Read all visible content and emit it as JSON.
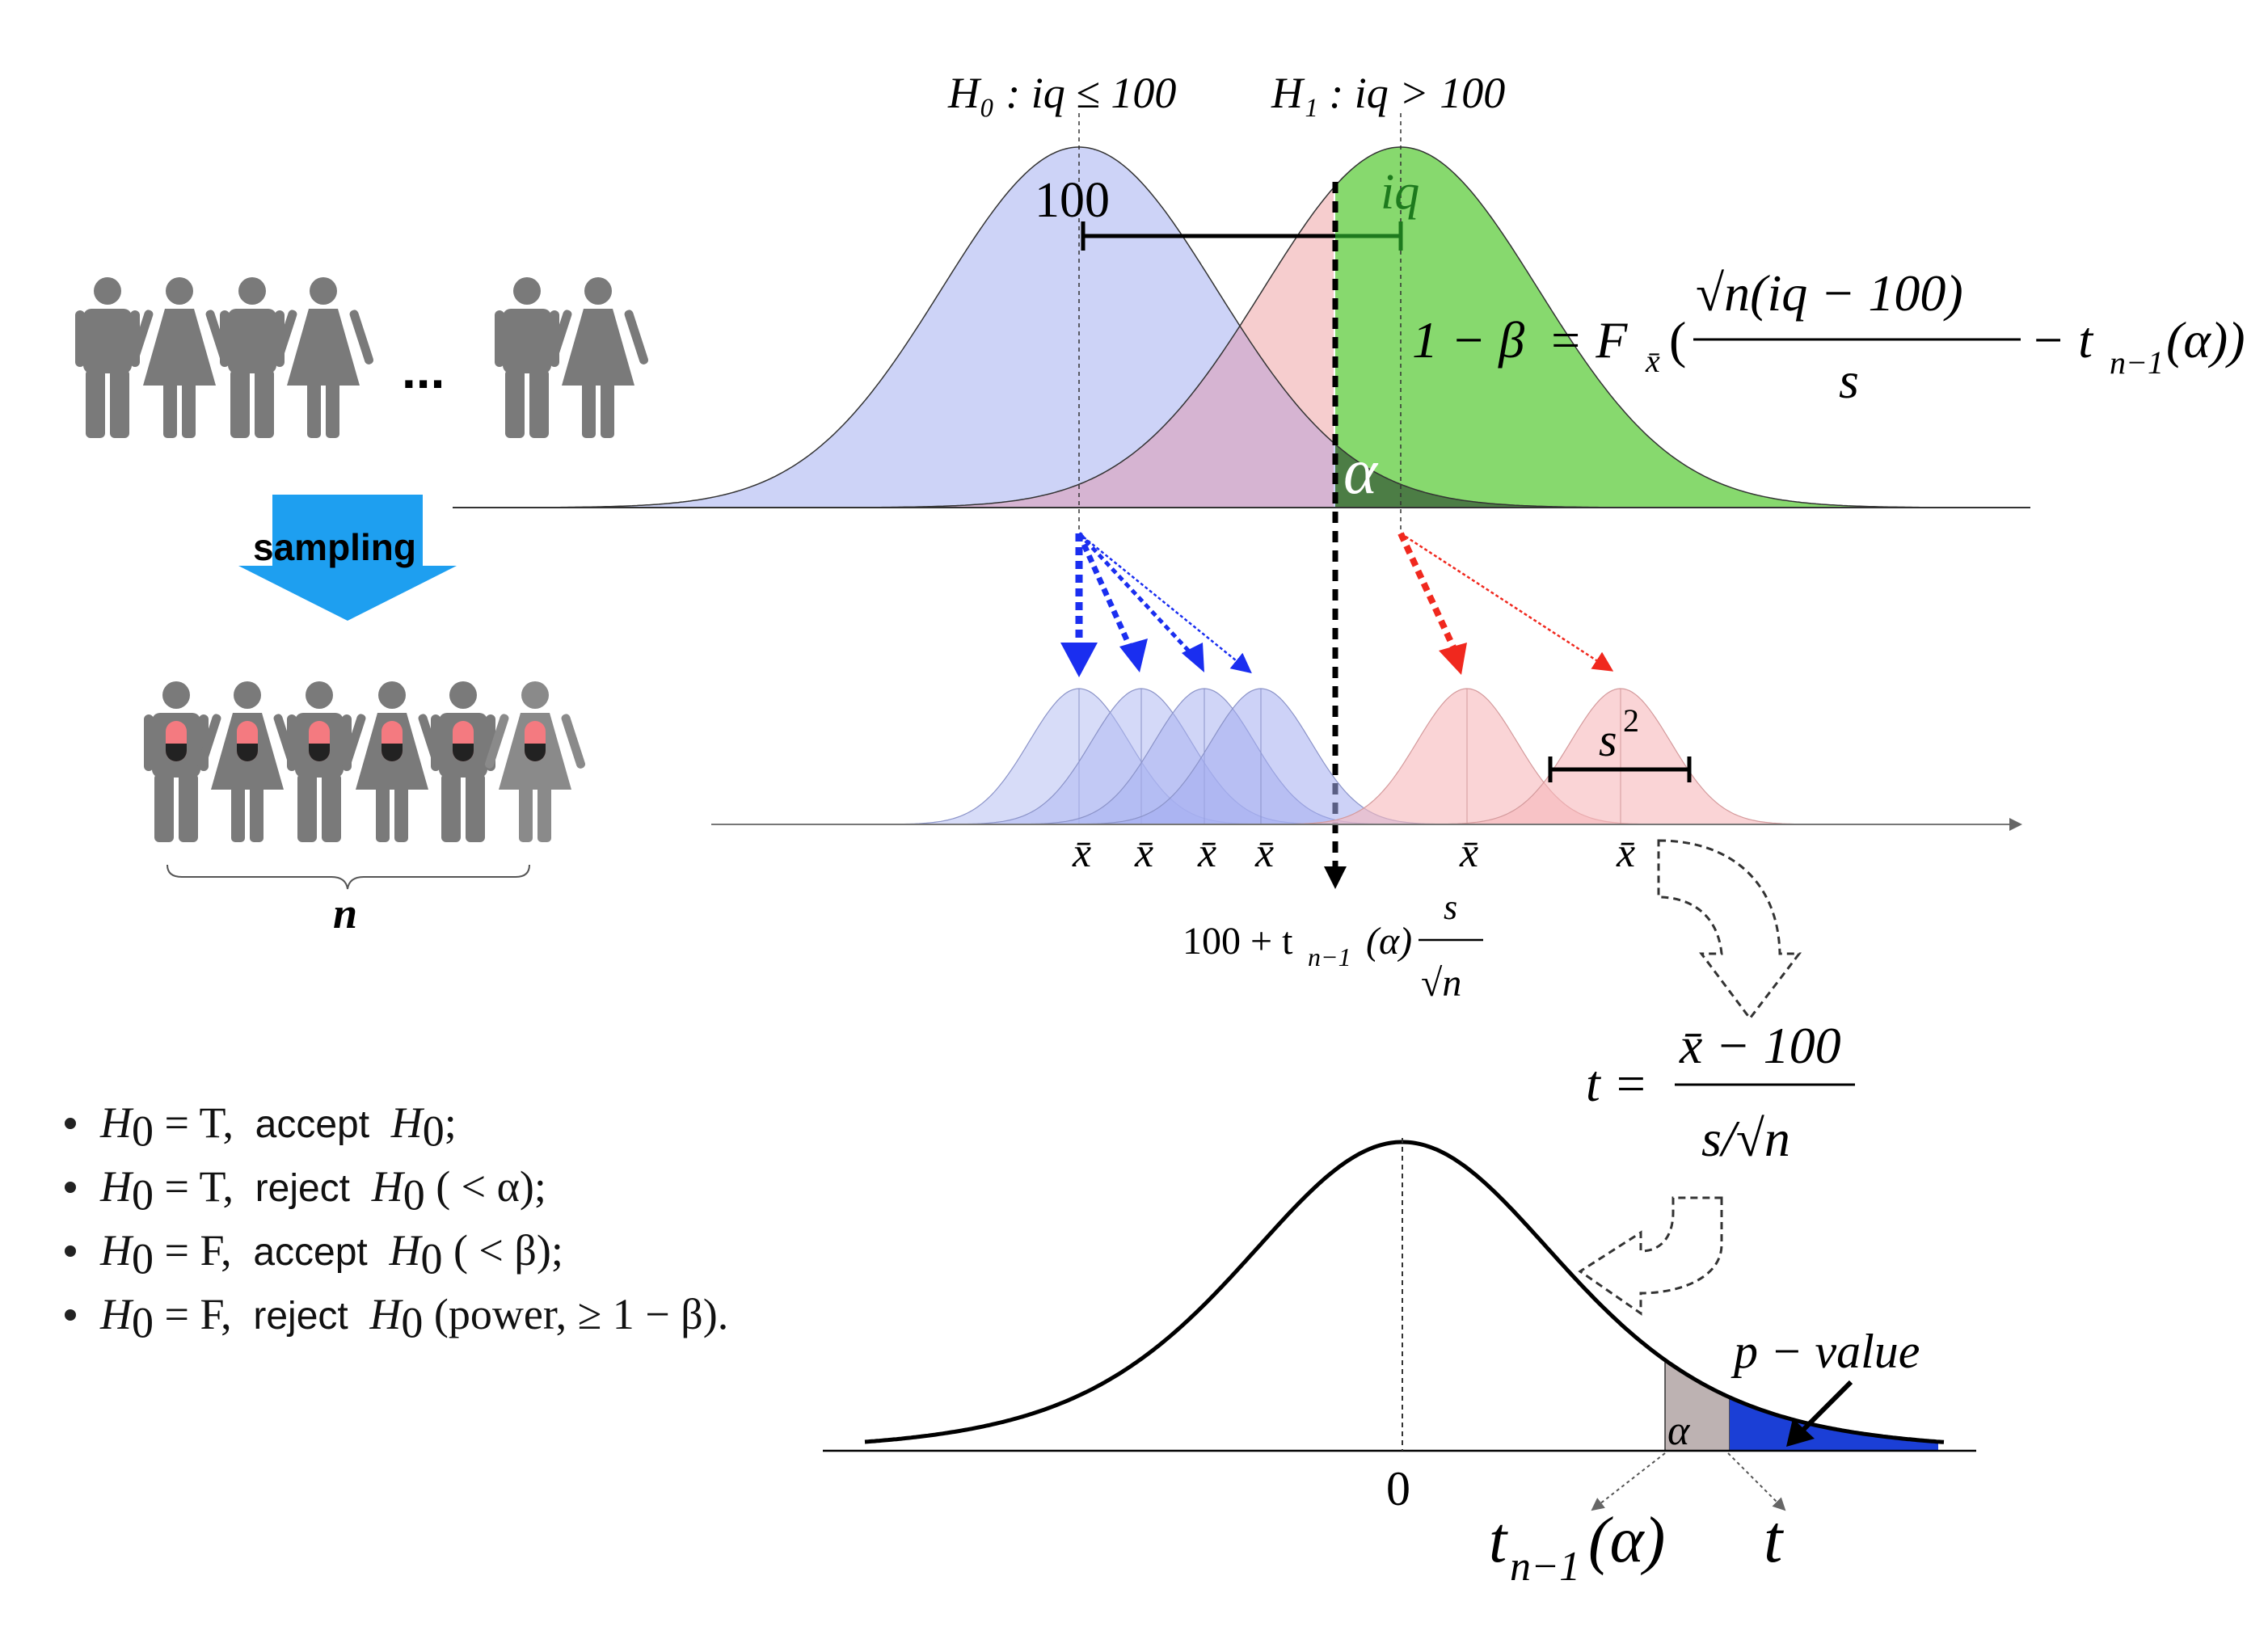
{
  "hypotheses": {
    "h0": "H₀ : iq ≤ 100",
    "h1": "H₁ : iq > 100"
  },
  "top_plot": {
    "mean_label": "100",
    "iq_label": "iq",
    "alpha_label": "α",
    "power_formula_lhs": "1 − β",
    "power_formula_rhs": "= F",
    "power_formula_sub": "x̄",
    "power_formula_num": "√n(iq − 100)",
    "power_formula_den": "s",
    "power_formula_tail": "− t",
    "power_formula_tail_sub": "n−1",
    "power_formula_tail_end": "(α))"
  },
  "left_panel": {
    "ellipsis": "...",
    "sampling_label": "sampling",
    "n_label": "n"
  },
  "middle_plot": {
    "xbar_label": "x̄",
    "s2_label": "s",
    "s2_sup": "2",
    "critical_value_formula": "100 + t",
    "critical_value_sub": "n−1",
    "critical_value_mid": "(α)",
    "critical_value_num": "s",
    "critical_value_den": "√n"
  },
  "t_formula": {
    "lhs": "t =",
    "num": "x̄ − 100",
    "den": "s/√n"
  },
  "bottom_plot": {
    "zero_label": "0",
    "alpha_label": "α",
    "pvalue_label": "p − value",
    "tcrit_label": "t",
    "tcrit_sub": "n−1",
    "tcrit_tail": "(α)",
    "t_label": "t"
  },
  "bullets": [
    {
      "h": "H",
      "sub": "0",
      "eq": " = T,",
      "action": "accept",
      "h2": "H",
      "sub2": "0",
      "tail": ";"
    },
    {
      "h": "H",
      "sub": "0",
      "eq": " = T,",
      "action": "reject",
      "h2": "H",
      "sub2": "0",
      "tail": " ( < α);"
    },
    {
      "h": "H",
      "sub": "0",
      "eq": " = F,",
      "action": "accept",
      "h2": "H",
      "sub2": "0",
      "tail": " ( < β);"
    },
    {
      "h": "H",
      "sub": "0",
      "eq": " = F,",
      "action": "reject",
      "h2": "H",
      "sub2": "0",
      "tail": " (power,  ≥ 1 − β)."
    }
  ],
  "colors": {
    "h0_fill": "#cdd3f7",
    "h1_fill": "#87d96e",
    "h1_pink": "#f4c4c6",
    "overlap": "#d4b5cf",
    "alpha_dark": "#4c7d45",
    "blue_arrow": "#1a2ef0",
    "red_arrow": "#f0281e",
    "sampling_arrow": "#1e9ff0",
    "person_gray": "#7a7a7a",
    "pvalue_fill": "#1b3fd6",
    "alpha_box": "#bdb2b2"
  }
}
